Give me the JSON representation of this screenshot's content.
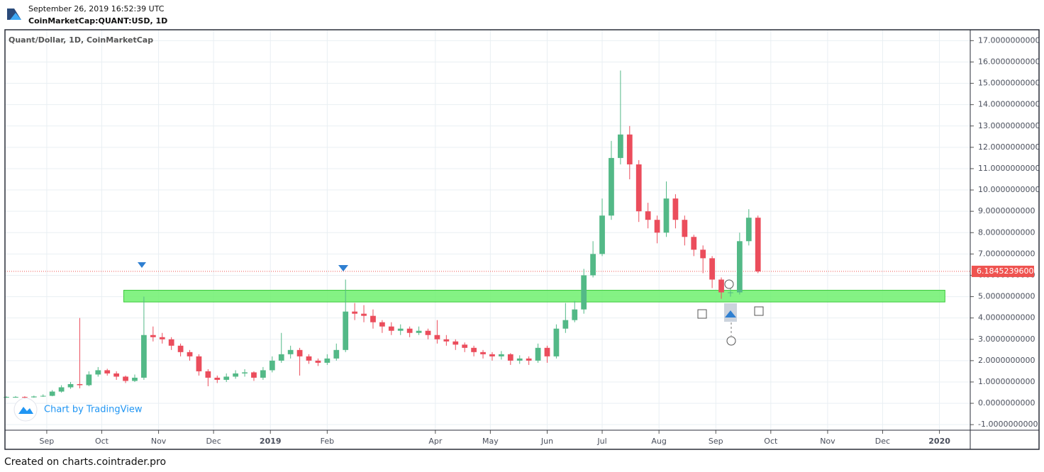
{
  "header": {
    "timestamp": "September 26, 2019 16:52:39 UTC",
    "symbol": "CoinMarketCap:QUANT:USD, 1D"
  },
  "footer": "Created on charts.cointrader.pro",
  "watermark": "Chart by TradingView",
  "chart_data": {
    "type": "candlestick",
    "title": "Quant/Dollar, 1D, CoinMarketCap",
    "up_color": "#53b987",
    "down_color": "#eb4d5c",
    "grid": true,
    "x": [
      -22,
      -17,
      -12,
      -7,
      -2,
      3,
      8,
      13,
      18,
      23,
      28,
      33,
      38,
      43,
      48,
      53,
      58,
      63,
      68,
      73,
      78,
      83,
      88,
      93,
      98,
      103,
      108,
      113,
      118,
      123,
      128,
      133,
      138,
      143,
      148,
      153,
      158,
      163,
      168,
      173,
      178,
      183,
      188,
      193,
      198,
      203,
      208,
      213,
      218,
      223,
      228,
      233,
      238,
      243,
      248,
      253,
      258,
      263,
      268,
      273,
      278,
      283,
      288,
      293,
      298,
      303,
      308,
      313,
      318,
      323,
      328,
      333,
      338,
      343,
      348,
      353,
      358,
      363,
      368,
      373,
      378,
      383,
      388
    ],
    "open": [
      0.28,
      0.3,
      0.3,
      0.28,
      0.32,
      0.35,
      0.55,
      0.75,
      0.9,
      0.85,
      1.35,
      1.55,
      1.4,
      1.25,
      1.05,
      1.2,
      3.2,
      3.1,
      3.0,
      2.7,
      2.4,
      2.2,
      1.5,
      1.2,
      1.1,
      1.25,
      1.4,
      1.45,
      1.2,
      1.55,
      2.0,
      2.3,
      2.5,
      2.2,
      2.0,
      1.9,
      2.1,
      2.5,
      4.3,
      4.2,
      4.1,
      3.8,
      3.6,
      3.4,
      3.5,
      3.3,
      3.4,
      3.2,
      3.0,
      2.9,
      2.75,
      2.6,
      2.4,
      2.3,
      2.2,
      2.3,
      2.0,
      2.1,
      2.0,
      2.6,
      2.2,
      3.5,
      3.9,
      4.4,
      6.0,
      7.0,
      8.8,
      11.5,
      12.6,
      11.2,
      9.0,
      8.6,
      8.0,
      9.6,
      8.6,
      7.8,
      7.2,
      6.8,
      5.8,
      5.2,
      5.2,
      7.6,
      8.7
    ],
    "high": [
      0.33,
      0.34,
      0.33,
      0.36,
      0.42,
      0.62,
      0.85,
      1.0,
      4.0,
      1.5,
      1.7,
      1.62,
      1.5,
      1.3,
      1.35,
      5.0,
      3.6,
      3.3,
      3.1,
      2.8,
      2.5,
      2.3,
      1.6,
      1.3,
      1.4,
      1.55,
      1.6,
      1.5,
      1.7,
      2.2,
      3.3,
      2.7,
      2.6,
      2.3,
      2.1,
      2.3,
      2.8,
      5.8,
      4.7,
      4.6,
      4.4,
      3.9,
      3.8,
      3.7,
      3.6,
      3.6,
      3.5,
      3.9,
      3.2,
      3.0,
      2.85,
      2.7,
      2.5,
      2.4,
      2.45,
      2.35,
      2.25,
      2.2,
      2.8,
      2.7,
      3.7,
      4.7,
      4.8,
      6.3,
      7.6,
      9.6,
      12.3,
      15.6,
      13.0,
      11.4,
      9.4,
      8.8,
      10.4,
      9.8,
      8.8,
      7.9,
      7.4,
      6.9,
      5.9,
      5.5,
      8.0,
      9.1,
      8.8
    ],
    "low": [
      0.25,
      0.26,
      0.25,
      0.26,
      0.3,
      0.33,
      0.5,
      0.68,
      0.7,
      0.8,
      1.25,
      1.3,
      1.1,
      0.95,
      1.0,
      1.1,
      2.9,
      2.8,
      2.5,
      2.2,
      2.0,
      1.3,
      0.8,
      0.95,
      1.0,
      1.15,
      1.25,
      1.05,
      1.1,
      1.45,
      1.9,
      2.1,
      1.3,
      1.85,
      1.75,
      1.8,
      2.0,
      2.4,
      3.9,
      3.8,
      3.5,
      3.3,
      3.2,
      3.2,
      3.1,
      3.2,
      3.0,
      2.8,
      2.7,
      2.5,
      2.4,
      2.2,
      2.1,
      2.0,
      2.05,
      1.8,
      1.85,
      1.8,
      1.9,
      1.9,
      2.1,
      3.3,
      3.8,
      4.2,
      5.9,
      6.9,
      8.6,
      11.2,
      10.5,
      8.5,
      8.2,
      7.5,
      7.8,
      8.2,
      7.4,
      6.9,
      6.1,
      5.4,
      4.9,
      5.0,
      5.1,
      7.4,
      6.1
    ],
    "close": [
      0.3,
      0.3,
      0.28,
      0.32,
      0.35,
      0.55,
      0.75,
      0.9,
      0.85,
      1.35,
      1.55,
      1.4,
      1.25,
      1.05,
      1.2,
      3.2,
      3.1,
      3.0,
      2.7,
      2.4,
      2.2,
      1.5,
      1.2,
      1.1,
      1.25,
      1.4,
      1.45,
      1.2,
      1.55,
      2.0,
      2.3,
      2.5,
      2.2,
      2.0,
      1.9,
      2.1,
      2.5,
      4.3,
      4.2,
      4.1,
      3.8,
      3.6,
      3.4,
      3.5,
      3.3,
      3.4,
      3.2,
      3.0,
      2.9,
      2.75,
      2.6,
      2.4,
      2.3,
      2.2,
      2.3,
      2.0,
      2.1,
      2.0,
      2.6,
      2.2,
      3.5,
      3.9,
      4.4,
      6.0,
      7.0,
      8.8,
      11.5,
      12.6,
      11.2,
      9.0,
      8.6,
      8.0,
      9.6,
      8.6,
      7.8,
      7.2,
      6.8,
      5.8,
      5.2,
      5.2,
      7.6,
      8.7,
      6.18
    ],
    "zone": {
      "low": 4.75,
      "high": 5.3,
      "x": [
        42,
        490
      ],
      "color": "#6ef06e"
    },
    "last_price": {
      "value": 6.18452396,
      "label": "6.1845239600",
      "color": "#ef5350"
    },
    "xlim": [
      -22.8,
      503.8
    ],
    "xticks": [
      {
        "value": 0,
        "label": "Sep"
      },
      {
        "value": 30,
        "label": "Oct"
      },
      {
        "value": 61,
        "label": "Nov"
      },
      {
        "value": 91,
        "label": "Dec"
      },
      {
        "value": 122,
        "label": "2019"
      },
      {
        "value": 153,
        "label": "Feb"
      },
      {
        "value": 212,
        "label": "Apr"
      },
      {
        "value": 242,
        "label": "May"
      },
      {
        "value": 273,
        "label": "Jun"
      },
      {
        "value": 303,
        "label": "Jul"
      },
      {
        "value": 334,
        "label": "Aug"
      },
      {
        "value": 365,
        "label": "Sep"
      },
      {
        "value": 395,
        "label": "Oct"
      },
      {
        "value": 426,
        "label": "Nov"
      },
      {
        "value": 456,
        "label": "Dec"
      },
      {
        "value": 487,
        "label": "2020"
      }
    ],
    "ylim": [
      -1.26,
      17.51
    ],
    "yticks": [
      {
        "value": -1,
        "label": "-1.0000000000"
      },
      {
        "value": 0,
        "label": "0.0000000000"
      },
      {
        "value": 1,
        "label": "1.0000000000"
      },
      {
        "value": 2,
        "label": "2.0000000000"
      },
      {
        "value": 3,
        "label": "3.0000000000"
      },
      {
        "value": 4,
        "label": "4.0000000000"
      },
      {
        "value": 5,
        "label": "5.0000000000"
      },
      {
        "value": 6,
        "label": "6.0000000000"
      },
      {
        "value": 7,
        "label": "7.0000000000"
      },
      {
        "value": 8,
        "label": "8.0000000000"
      },
      {
        "value": 9,
        "label": "9.0000000000"
      },
      {
        "value": 10,
        "label": "10.0000000000"
      },
      {
        "value": 11,
        "label": "11.0000000000"
      },
      {
        "value": 12,
        "label": "12.0000000000"
      },
      {
        "value": 13,
        "label": "13.0000000000"
      },
      {
        "value": 14,
        "label": "14.0000000000"
      },
      {
        "value": 15,
        "label": "15.0000000000"
      },
      {
        "value": 16,
        "label": "16.0000000000"
      },
      {
        "value": 17,
        "label": "17.0000000000"
      }
    ]
  }
}
